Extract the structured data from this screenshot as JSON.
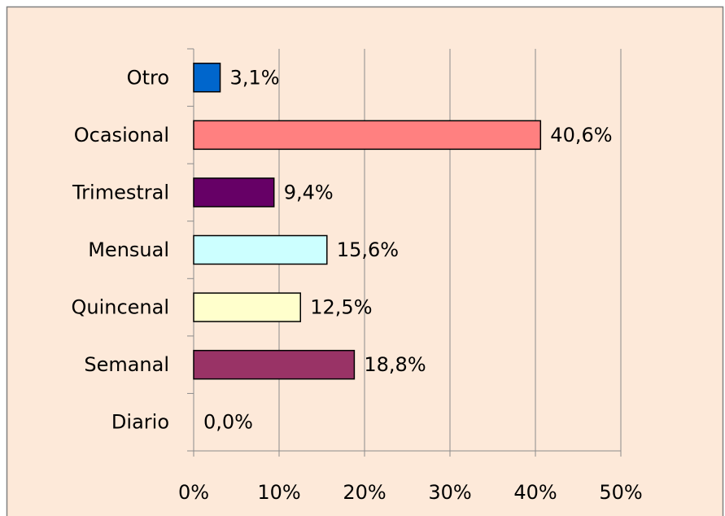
{
  "chart_data": {
    "type": "bar",
    "orientation": "horizontal",
    "categories": [
      "Otro",
      "Ocasional",
      "Trimestral",
      "Mensual",
      "Quincenal",
      "Semanal",
      "Diario"
    ],
    "values": [
      3.1,
      40.6,
      9.4,
      15.6,
      12.5,
      18.8,
      0.0
    ],
    "value_labels": [
      "3,1%",
      "40,6%",
      "9,4%",
      "15,6%",
      "12,5%",
      "18,8%",
      "0,0%"
    ],
    "colors": [
      "#0066cc",
      "#ff8080",
      "#660066",
      "#ccffff",
      "#ffffcc",
      "#993366",
      "#ccccff"
    ],
    "xlim": [
      0,
      50
    ],
    "xticks": [
      {
        "value": 0,
        "label": "0%"
      },
      {
        "value": 10,
        "label": "10%"
      },
      {
        "value": 20,
        "label": "20%"
      },
      {
        "value": 30,
        "label": "30%"
      },
      {
        "value": 40,
        "label": "40%"
      },
      {
        "value": 50,
        "label": "50%"
      }
    ],
    "grid": true
  }
}
